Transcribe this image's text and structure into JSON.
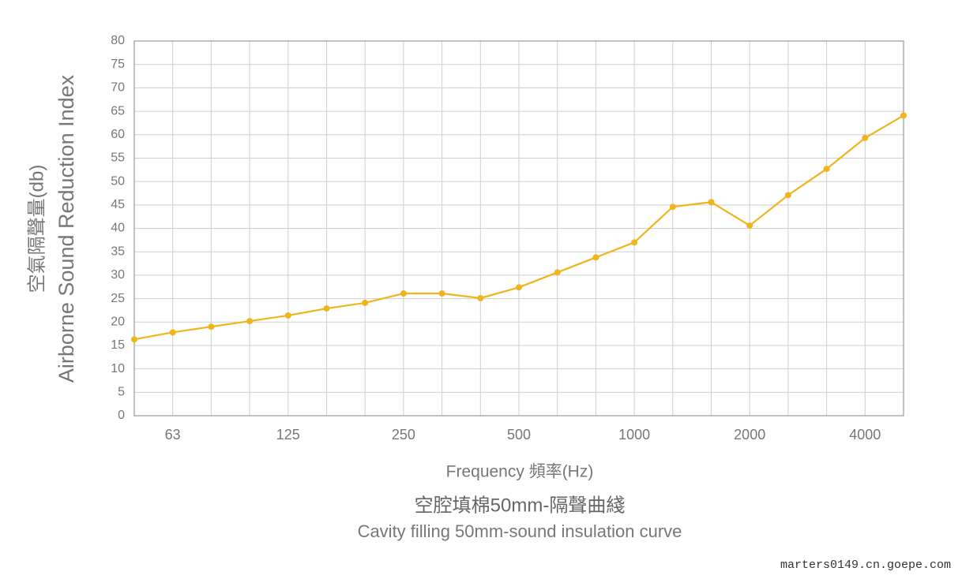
{
  "chart_data": {
    "type": "line",
    "title": "空腔填棉50mm-隔聲曲綫",
    "subtitle": "Cavity filling 50mm-sound insulation curve",
    "xlabel": "Frequency 頻率(Hz)",
    "ylabel": [
      "空氣隔聲量(db)",
      "Airborne Sound Reduction Index"
    ],
    "categories": [
      null,
      "63",
      null,
      null,
      "125",
      null,
      null,
      "250",
      null,
      null,
      "500",
      null,
      null,
      "1000",
      null,
      null,
      "2000",
      null,
      null,
      "4000",
      null
    ],
    "series": [
      {
        "name": "Sound reduction index",
        "color": "#f0b41c",
        "values": [
          16.3,
          17.8,
          19.0,
          20.2,
          21.4,
          22.9,
          24.1,
          26.1,
          26.1,
          25.1,
          27.4,
          30.6,
          33.8,
          37.0,
          44.6,
          45.6,
          40.6,
          47.1,
          52.7,
          59.3,
          64.1
        ]
      }
    ],
    "ylim": [
      0,
      80
    ],
    "yticks": [
      0,
      5,
      10,
      15,
      20,
      25,
      30,
      35,
      40,
      45,
      50,
      55,
      60,
      65,
      70,
      75,
      80
    ],
    "grid": true
  },
  "watermark": "marters0149.cn.goepe.com"
}
